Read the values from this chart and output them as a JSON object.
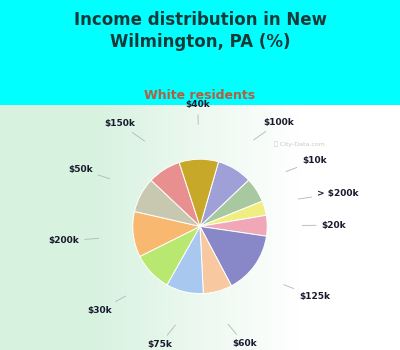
{
  "title": "Income distribution in New\nWilmington, PA (%)",
  "subtitle": "White residents",
  "bg_color": "#00FFFF",
  "title_color": "#1a3a3a",
  "subtitle_color": "#b06040",
  "title_fontsize": 12,
  "subtitle_fontsize": 9,
  "label_fontsize": 6.5,
  "labels": [
    "$100k",
    "$10k",
    "> $200k",
    "$20k",
    "$125k",
    "$60k",
    "$75k",
    "$30k",
    "$200k",
    "$50k",
    "$150k",
    "$40k"
  ],
  "values": [
    8.5,
    6.0,
    3.5,
    5.0,
    15.0,
    7.0,
    9.0,
    9.5,
    11.0,
    8.5,
    8.0,
    9.5
  ],
  "colors": [
    "#a0a0d8",
    "#a8c8a0",
    "#f0ee80",
    "#f0a8b8",
    "#8888c8",
    "#f8c8a0",
    "#a8c8f0",
    "#b8e870",
    "#f8b870",
    "#c8c8b0",
    "#e89090",
    "#c8a828"
  ],
  "startangle": 74,
  "watermark": "City-Data.com"
}
